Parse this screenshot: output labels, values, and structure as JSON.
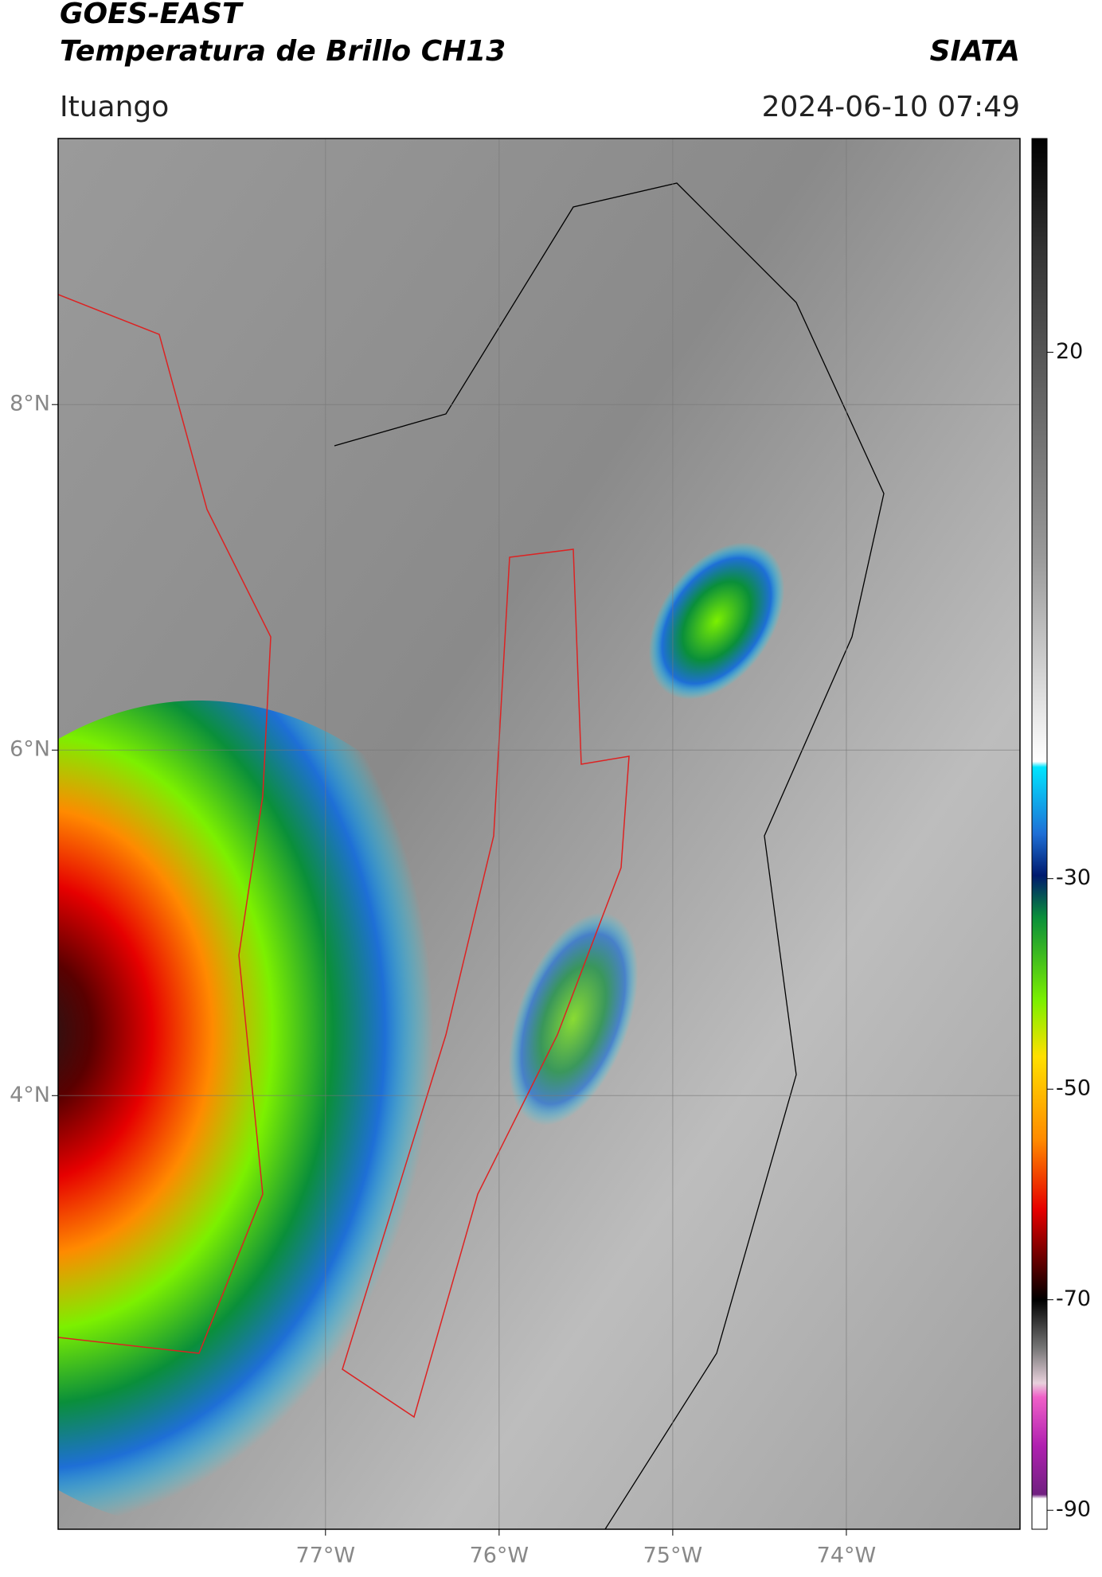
{
  "header": {
    "satellite": "GOES-EAST",
    "product": "Temperatura de Brillo CH13",
    "source": "SIATA",
    "location": "Ituango",
    "datetime": "2024-06-10 07:49"
  },
  "map": {
    "lonlim": [
      -78.54,
      -73.0
    ],
    "latlim": [
      1.49,
      9.54
    ],
    "grid": true,
    "lat_ticks": [
      {
        "value": 8,
        "label": "8°N"
      },
      {
        "value": 6,
        "label": "6°N"
      },
      {
        "value": 4,
        "label": "4°N"
      }
    ],
    "lon_ticks": [
      {
        "value": -77,
        "label": "77°W"
      },
      {
        "value": -76,
        "label": "76°W"
      },
      {
        "value": -75,
        "label": "75°W"
      },
      {
        "value": -74,
        "label": "74°W"
      }
    ]
  },
  "colorbar": {
    "lim": [
      -91.8,
      40.3
    ],
    "ticks": [
      20,
      -30,
      -50,
      -70,
      -90
    ]
  }
}
